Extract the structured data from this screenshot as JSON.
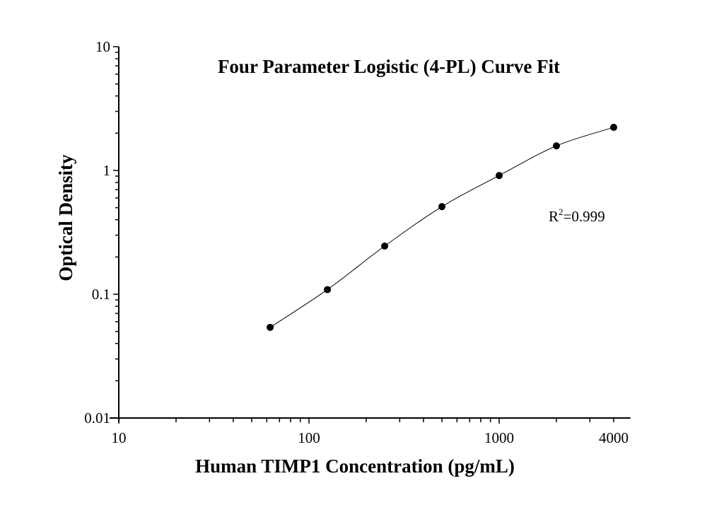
{
  "chart_data": {
    "type": "scatter",
    "title": "Four Parameter Logistic (4-PL) Curve Fit",
    "xlabel": "Human TIMP1 Concentration (pg/mL)",
    "ylabel": "Optical Density",
    "x_scale": "log",
    "y_scale": "log",
    "xlim": [
      10,
      4500
    ],
    "ylim": [
      0.01,
      10
    ],
    "x_ticks": [
      10,
      100,
      1000,
      4000
    ],
    "x_tick_labels": [
      "10",
      "100",
      "1000",
      "4000"
    ],
    "y_ticks": [
      0.01,
      0.1,
      1,
      10
    ],
    "y_tick_labels": [
      "0.01",
      "0.1",
      "1",
      "10"
    ],
    "grid": false,
    "series": [
      {
        "x": [
          62.5,
          125,
          250,
          500,
          1000,
          2000,
          4000
        ],
        "y": [
          0.054,
          0.109,
          0.245,
          0.51,
          0.91,
          1.58,
          2.23
        ],
        "marker": "filled-circle",
        "fit_curve": "4-PL"
      }
    ],
    "annotation": {
      "prefix": "R",
      "superscript": "2",
      "text": "=0.999"
    },
    "colors": {
      "marker": "#000000",
      "line": "#000000"
    }
  }
}
